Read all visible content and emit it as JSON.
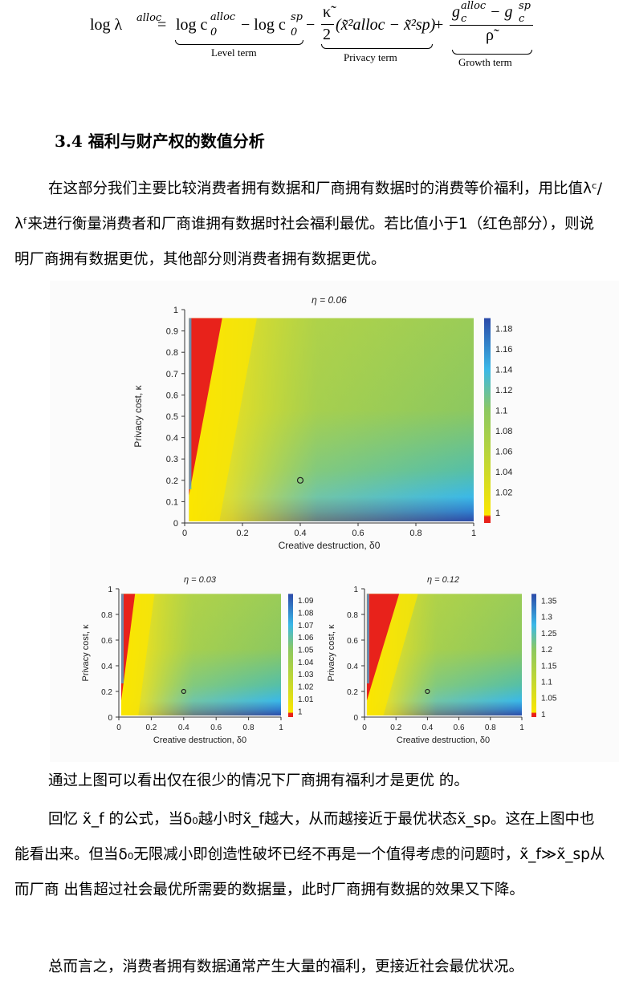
{
  "formula": {
    "lhs": "log λ",
    "lhs_sup": "alloc",
    "equals": "=",
    "term1_a": "log c",
    "term1_a_sub": "0",
    "term1_a_sup": "alloc",
    "minus1": "− log c",
    "term1_b_sub": "0",
    "term1_b_sup": "sp",
    "minus2": "−",
    "kappa_frac_num": "κ̃",
    "kappa_frac_den": "2",
    "privacy_inner": "(x̃²alloc − x̃²sp)",
    "plus": "+",
    "growth_num": "g",
    "growth_num_sup1": "alloc",
    "growth_num_sub1": "c",
    "growth_minus": "− g",
    "growth_num_sup2": "sp",
    "growth_num_sub2": "c",
    "growth_den": "ρ̃",
    "label_level": "Level term",
    "label_privacy": "Privacy term",
    "label_growth": "Growth term"
  },
  "section_heading": "3.4 福利与财产权的数值分析",
  "paragraph1": "在这部分我们主要比较消费者拥有数据和厂商拥有数据时的消费等价福利，用比值λᶜ/λᶠ来进行衡量消费者和厂商谁拥有数据时社会福利最优。若比值小于1（红色部分），则说明厂商拥有数据更优，其他部分则消费者拥有数据更优。",
  "paragraph2": "通过上图可以看出仅在很少的情况下厂商拥有福利才是更优 的。",
  "paragraph3": "回忆 x̃_f 的公式，当δ₀越小时x̃_f越大，从而越接近于最优状态x̃_sp。这在上图中也能看出来。但当δ₀无限减小即创造性破坏已经不再是一个值得考虑的问题时，x̃_f≫x̃_sp从而厂商 出售超过社会最优所需要的数据量，此时厂商拥有数据的效果又下降。",
  "paragraph4": "总而言之，消费者拥有数据通常产生大量的福利，更接近社会最优状况。",
  "colors": {
    "red": "#e8221b",
    "yellow": "#fbe600",
    "green": "#8cc860",
    "cyan": "#3ab8e8",
    "blue": "#2b4aa8"
  },
  "chart_data": [
    {
      "type": "heatmap",
      "title": "η = 0.06",
      "xlabel": "Creative destruction, δ0",
      "ylabel": "Privacy cost, κ",
      "xlim": [
        0,
        1
      ],
      "ylim": [
        0,
        1
      ],
      "x_ticks": [
        "0",
        "0.2",
        "0.4",
        "0.6",
        "0.8",
        "1"
      ],
      "y_ticks": [
        "0",
        "0.1",
        "0.2",
        "0.3",
        "0.4",
        "0.5",
        "0.6",
        "0.7",
        "0.8",
        "0.9",
        "1"
      ],
      "colorbar_ticks": [
        "1",
        "1.02",
        "1.04",
        "1.06",
        "1.08",
        "1.1",
        "1.12",
        "1.14",
        "1.16",
        "1.18"
      ],
      "colorbar_range": [
        0.99,
        1.19
      ],
      "marker": {
        "x": 0.4,
        "y": 0.2
      },
      "red_region_boundary": {
        "at_y0_x": 0.0,
        "at_y1_x": 0.13
      }
    },
    {
      "type": "heatmap",
      "title": "η = 0.03",
      "xlabel": "Creative destruction, δ0",
      "ylabel": "Privacy cost, κ",
      "xlim": [
        0,
        1
      ],
      "ylim": [
        0,
        1
      ],
      "x_ticks": [
        "0",
        "0.2",
        "0.4",
        "0.6",
        "0.8",
        "1"
      ],
      "y_ticks": [
        "0",
        "0.2",
        "0.4",
        "0.6",
        "0.8",
        "1"
      ],
      "colorbar_ticks": [
        "1",
        "1.01",
        "1.02",
        "1.03",
        "1.04",
        "1.05",
        "1.06",
        "1.07",
        "1.08",
        "1.09"
      ],
      "colorbar_range": [
        0.995,
        1.095
      ],
      "marker": {
        "x": 0.4,
        "y": 0.2
      },
      "red_region_boundary": {
        "at_y0_x": 0.0,
        "at_y1_x": 0.1
      }
    },
    {
      "type": "heatmap",
      "title": "η = 0.12",
      "xlabel": "Creative destruction, δ0",
      "ylabel": "Privacy cost, κ",
      "xlim": [
        0,
        1
      ],
      "ylim": [
        0,
        1
      ],
      "x_ticks": [
        "0",
        "0.2",
        "0.4",
        "0.6",
        "0.8",
        "1"
      ],
      "y_ticks": [
        "0",
        "0.2",
        "0.4",
        "0.6",
        "0.8",
        "1"
      ],
      "colorbar_ticks": [
        "1",
        "1.05",
        "1.1",
        "1.15",
        "1.2",
        "1.25",
        "1.3",
        "1.35"
      ],
      "colorbar_range": [
        0.99,
        1.37
      ],
      "marker": {
        "x": 0.4,
        "y": 0.2
      },
      "red_region_boundary": {
        "at_y0_x": 0.0,
        "at_y1_x": 0.22
      }
    }
  ]
}
